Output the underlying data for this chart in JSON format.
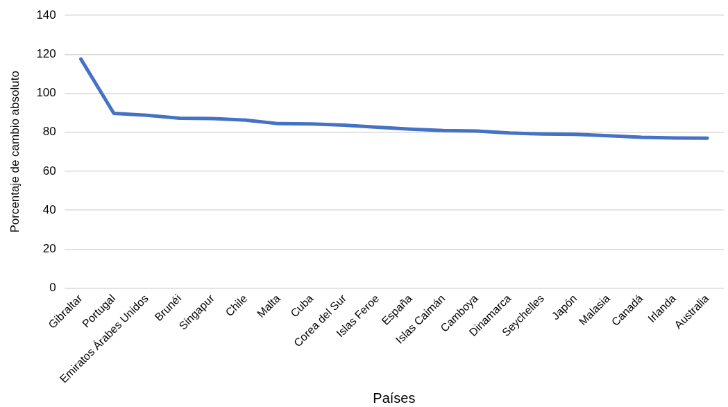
{
  "chart_data": {
    "type": "line",
    "xlabel": "Países",
    "ylabel": "Porcentaje de cambio absoluto",
    "categories": [
      "Gibraltar",
      "Portugal",
      "Emiratos Árabes Unidos",
      "Brunéi",
      "Singapur",
      "Chile",
      "Malta",
      "Cuba",
      "Corea del Sur",
      "Islas Feroe",
      "España",
      "Islas Caimán",
      "Camboya",
      "Dinamarca",
      "Seychelles",
      "Japón",
      "Malasia",
      "Canadá",
      "Irlanda",
      "Australia"
    ],
    "series": [
      {
        "color": "#4472c4",
        "values": [
          117.6,
          89.7,
          88.7,
          87.2,
          87.0,
          86.2,
          84.4,
          84.3,
          83.6,
          82.6,
          81.6,
          80.9,
          80.6,
          79.6,
          79.1,
          78.9,
          78.2,
          77.4,
          77.1,
          77.0
        ]
      }
    ],
    "ylim": [
      0,
      140
    ],
    "yticks": [
      0,
      20,
      40,
      60,
      80,
      100,
      120,
      140
    ],
    "grid": "y",
    "marker": "none",
    "line_style": "solid"
  }
}
